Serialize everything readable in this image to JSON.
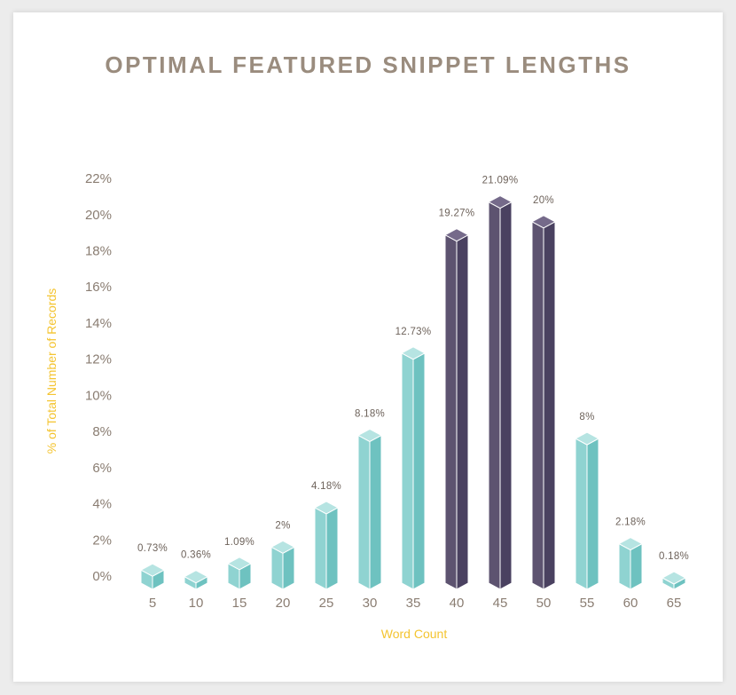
{
  "colors": {
    "teal": "#8fd3d1",
    "teal_side": "#6ec2c0",
    "teal_top": "#b6e4e2",
    "purple": "#5d5370",
    "purple_side": "#4a4160",
    "purple_top": "#756a8a",
    "title": "#9a8c7e",
    "axis_label": "#f4c430",
    "tick": "#8a7d72"
  },
  "chart_data": {
    "type": "bar",
    "title": "OPTIMAL FEATURED SNIPPET LENGTHS",
    "xlabel": "Word Count",
    "ylabel": "% of Total Number of Records",
    "categories": [
      "5",
      "10",
      "15",
      "20",
      "25",
      "30",
      "35",
      "40",
      "45",
      "50",
      "55",
      "60",
      "65"
    ],
    "values": [
      0.73,
      0.36,
      1.09,
      2,
      4.18,
      8.18,
      12.73,
      19.27,
      21.09,
      20,
      8,
      2.18,
      0.18
    ],
    "data_labels": [
      "0.73%",
      "0.36%",
      "1.09%",
      "2%",
      "4.18%",
      "8.18%",
      "12.73%",
      "19.27%",
      "21.09%",
      "20%",
      "8%",
      "2.18%",
      "0.18%"
    ],
    "highlight": [
      false,
      false,
      false,
      false,
      false,
      false,
      false,
      true,
      true,
      true,
      false,
      false,
      false
    ],
    "yticks": [
      "0%",
      "2%",
      "4%",
      "6%",
      "8%",
      "10%",
      "12%",
      "14%",
      "16%",
      "18%",
      "20%",
      "22%"
    ],
    "ylim": [
      0,
      22
    ],
    "grid": false,
    "legend": "none"
  }
}
